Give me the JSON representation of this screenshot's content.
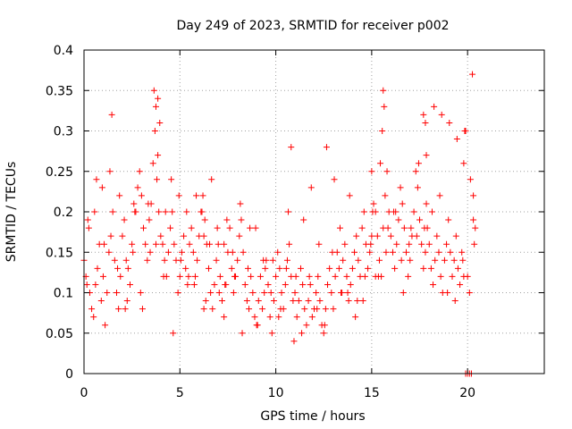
{
  "chart_data": {
    "type": "scatter",
    "title": "Day 249 of 2023, SRMTID for receiver p002",
    "xlabel": "GPS time / hours",
    "ylabel": "SRMTID / TECUs",
    "xlim": [
      0,
      24
    ],
    "ylim": [
      0,
      0.4
    ],
    "x_ticks": [
      0,
      5,
      10,
      15,
      20
    ],
    "x_tick_labels": [
      "0",
      "5",
      "10",
      "15",
      "20"
    ],
    "y_ticks": [
      0,
      0.05,
      0.1,
      0.15,
      0.2,
      0.25,
      0.3,
      0.35,
      0.4
    ],
    "y_tick_labels": [
      "0",
      "0.05",
      "0.1",
      "0.15",
      "0.2",
      "0.25",
      "0.3",
      "0.35",
      "0.4"
    ],
    "grid": true,
    "marker": "+",
    "color": "#ff0000",
    "series": [
      {
        "name": "SRMTID",
        "x": [
          0.0,
          0.1,
          0.2,
          0.3,
          0.4,
          0.5,
          0.6,
          0.7,
          0.8,
          0.9,
          1.0,
          1.1,
          1.2,
          1.3,
          1.4,
          1.5,
          1.6,
          1.7,
          1.8,
          1.9,
          2.0,
          2.1,
          2.2,
          2.3,
          2.4,
          2.5,
          2.6,
          2.7,
          2.8,
          2.9,
          3.0,
          3.1,
          3.2,
          3.3,
          3.4,
          3.5,
          3.6,
          3.7,
          3.8,
          3.9,
          4.0,
          4.1,
          4.2,
          4.3,
          4.4,
          4.5,
          4.6,
          4.7,
          4.8,
          4.9,
          5.0,
          5.1,
          5.2,
          5.3,
          5.4,
          5.5,
          5.6,
          5.7,
          5.8,
          5.9,
          6.0,
          6.1,
          6.2,
          6.3,
          6.4,
          6.5,
          6.6,
          6.7,
          6.8,
          6.9,
          7.0,
          7.1,
          7.2,
          7.3,
          7.4,
          7.5,
          7.6,
          7.7,
          7.8,
          7.9,
          8.0,
          8.1,
          8.2,
          8.3,
          8.4,
          8.5,
          8.6,
          8.7,
          8.8,
          8.9,
          9.0,
          9.1,
          9.2,
          9.3,
          9.4,
          9.5,
          9.6,
          9.7,
          9.8,
          9.9,
          10.0,
          10.1,
          10.2,
          10.3,
          10.4,
          10.5,
          10.6,
          10.7,
          10.8,
          10.9,
          11.0,
          11.1,
          11.2,
          11.3,
          11.4,
          11.5,
          11.6,
          11.7,
          11.8,
          11.9,
          12.0,
          12.1,
          12.2,
          12.3,
          12.4,
          12.5,
          12.6,
          12.7,
          12.8,
          12.9,
          13.0,
          13.1,
          13.2,
          13.3,
          13.4,
          13.5,
          13.6,
          13.7,
          13.8,
          13.9,
          14.0,
          14.1,
          14.2,
          14.3,
          14.4,
          14.5,
          14.6,
          14.7,
          14.8,
          14.9,
          15.0,
          15.1,
          15.2,
          15.3,
          15.4,
          15.5,
          15.6,
          15.7,
          15.8,
          15.9,
          16.0,
          16.1,
          16.2,
          16.3,
          16.4,
          16.5,
          16.6,
          16.7,
          16.8,
          16.9,
          17.0,
          17.1,
          17.2,
          17.3,
          17.4,
          17.5,
          17.6,
          17.7,
          17.8,
          17.9,
          18.0,
          18.1,
          18.2,
          18.3,
          18.4,
          18.5,
          18.6,
          18.7,
          18.8,
          18.9,
          19.0,
          19.1,
          19.2,
          19.3,
          19.4,
          19.5,
          19.6,
          19.7,
          19.8,
          19.9,
          20.0,
          20.1,
          20.2,
          20.3,
          20.4,
          7.3,
          15.0,
          20.0,
          20.1,
          0.25,
          0.65,
          1.05,
          1.45,
          1.85,
          2.25,
          2.65,
          3.05,
          3.45,
          3.85,
          4.25,
          4.65,
          5.05,
          5.45,
          5.85,
          6.25,
          6.65,
          7.05,
          7.45,
          7.85,
          8.25,
          8.65,
          9.05,
          9.45,
          9.85,
          10.25,
          10.65,
          11.05,
          11.45,
          11.85,
          12.25,
          12.65,
          13.05,
          13.45,
          13.85,
          14.25,
          14.65,
          15.05,
          15.45,
          15.85,
          16.25,
          16.65,
          17.05,
          17.45,
          17.85,
          18.25,
          18.65,
          19.05,
          19.45,
          19.85,
          20.25,
          3.65,
          3.75,
          3.85,
          3.95,
          10.8,
          15.55,
          15.6,
          15.65,
          17.7,
          17.8,
          17.85,
          19.8,
          19.9,
          20.3,
          20.35,
          6.25,
          6.35,
          15.2,
          0.15,
          0.55,
          0.95,
          1.35,
          1.75,
          2.15,
          2.55,
          2.95,
          3.35,
          3.75,
          4.15,
          4.55,
          4.95,
          5.35,
          5.75,
          6.15,
          6.55,
          6.95,
          7.35,
          7.75,
          8.15,
          8.55,
          8.95,
          9.35,
          9.75,
          10.15,
          10.55,
          10.95,
          11.35,
          11.75,
          12.15,
          12.55,
          12.95,
          13.35,
          13.75,
          14.15,
          14.55,
          14.95,
          15.35,
          15.75,
          16.15,
          16.55,
          16.95,
          17.35,
          17.75,
          18.15,
          18.55,
          18.95,
          19.35,
          19.75,
          20.15
        ],
        "y": [
          0.14,
          0.12,
          0.19,
          0.1,
          0.08,
          0.07,
          0.11,
          0.13,
          0.16,
          0.09,
          0.12,
          0.06,
          0.1,
          0.15,
          0.17,
          0.2,
          0.14,
          0.1,
          0.08,
          0.12,
          0.17,
          0.19,
          0.14,
          0.13,
          0.11,
          0.16,
          0.21,
          0.2,
          0.23,
          0.25,
          0.22,
          0.18,
          0.16,
          0.14,
          0.19,
          0.21,
          0.26,
          0.3,
          0.24,
          0.2,
          0.17,
          0.16,
          0.14,
          0.12,
          0.15,
          0.18,
          0.2,
          0.16,
          0.14,
          0.1,
          0.12,
          0.15,
          0.17,
          0.13,
          0.11,
          0.16,
          0.18,
          0.15,
          0.12,
          0.14,
          0.17,
          0.2,
          0.22,
          0.19,
          0.16,
          0.13,
          0.1,
          0.08,
          0.11,
          0.14,
          0.16,
          0.12,
          0.09,
          0.07,
          0.11,
          0.15,
          0.18,
          0.13,
          0.1,
          0.12,
          0.14,
          0.17,
          0.19,
          0.15,
          0.11,
          0.09,
          0.08,
          0.12,
          0.1,
          0.07,
          0.06,
          0.09,
          0.12,
          0.08,
          0.1,
          0.14,
          0.11,
          0.07,
          0.05,
          0.09,
          0.12,
          0.15,
          0.13,
          0.1,
          0.08,
          0.11,
          0.14,
          0.16,
          0.12,
          0.09,
          0.1,
          0.07,
          0.09,
          0.13,
          0.11,
          0.08,
          0.06,
          0.09,
          0.11,
          0.07,
          0.08,
          0.1,
          0.12,
          0.09,
          0.06,
          0.05,
          0.08,
          0.11,
          0.13,
          0.1,
          0.08,
          0.12,
          0.15,
          0.13,
          0.1,
          0.14,
          0.16,
          0.12,
          0.09,
          0.11,
          0.13,
          0.15,
          0.17,
          0.14,
          0.12,
          0.18,
          0.2,
          0.16,
          0.13,
          0.15,
          0.17,
          0.21,
          0.2,
          0.17,
          0.14,
          0.12,
          0.18,
          0.22,
          0.25,
          0.2,
          0.17,
          0.15,
          0.13,
          0.16,
          0.19,
          0.23,
          0.21,
          0.18,
          0.15,
          0.12,
          0.14,
          0.17,
          0.2,
          0.25,
          0.23,
          0.19,
          0.16,
          0.13,
          0.15,
          0.18,
          0.16,
          0.13,
          0.11,
          0.14,
          0.17,
          0.15,
          0.12,
          0.1,
          0.14,
          0.16,
          0.19,
          0.15,
          0.12,
          0.14,
          0.17,
          0.13,
          0.11,
          0.15,
          0.12,
          0.0,
          0.0,
          0.0,
          0.0,
          0.22,
          0.18,
          0.16,
          0.25,
          0.12,
          0.1,
          0.18,
          0.24,
          0.16,
          0.32,
          0.22,
          0.09,
          0.2,
          0.08,
          0.15,
          0.27,
          0.2,
          0.05,
          0.14,
          0.12,
          0.22,
          0.17,
          0.24,
          0.1,
          0.19,
          0.12,
          0.05,
          0.18,
          0.06,
          0.13,
          0.14,
          0.08,
          0.2,
          0.12,
          0.19,
          0.23,
          0.16,
          0.28,
          0.24,
          0.1,
          0.22,
          0.09,
          0.12,
          0.2,
          0.26,
          0.18,
          0.2,
          0.1,
          0.18,
          0.26,
          0.21,
          0.33,
          0.32,
          0.31,
          0.29,
          0.3,
          0.37,
          0.35,
          0.33,
          0.34,
          0.31,
          0.28,
          0.3,
          0.35,
          0.33,
          0.32,
          0.31,
          0.27,
          0.26,
          0.3,
          0.19,
          0.16,
          0.08,
          0.09,
          0.12,
          0.11,
          0.2,
          0.23,
          0.25,
          0.13,
          0.08,
          0.15,
          0.1,
          0.21,
          0.16,
          0.12,
          0.24,
          0.22,
          0.2,
          0.11,
          0.2,
          0.16,
          0.18,
          0.11,
          0.15,
          0.21,
          0.13,
          0.18,
          0.14,
          0.1,
          0.07,
          0.13,
          0.04,
          0.05,
          0.12,
          0.08,
          0.06,
          0.15,
          0.18,
          0.1,
          0.07,
          0.09,
          0.16,
          0.12,
          0.15,
          0.2,
          0.14,
          0.16,
          0.17,
          0.18,
          0.2,
          0.22,
          0.1,
          0.09,
          0.14,
          0.24
        ]
      }
    ]
  }
}
